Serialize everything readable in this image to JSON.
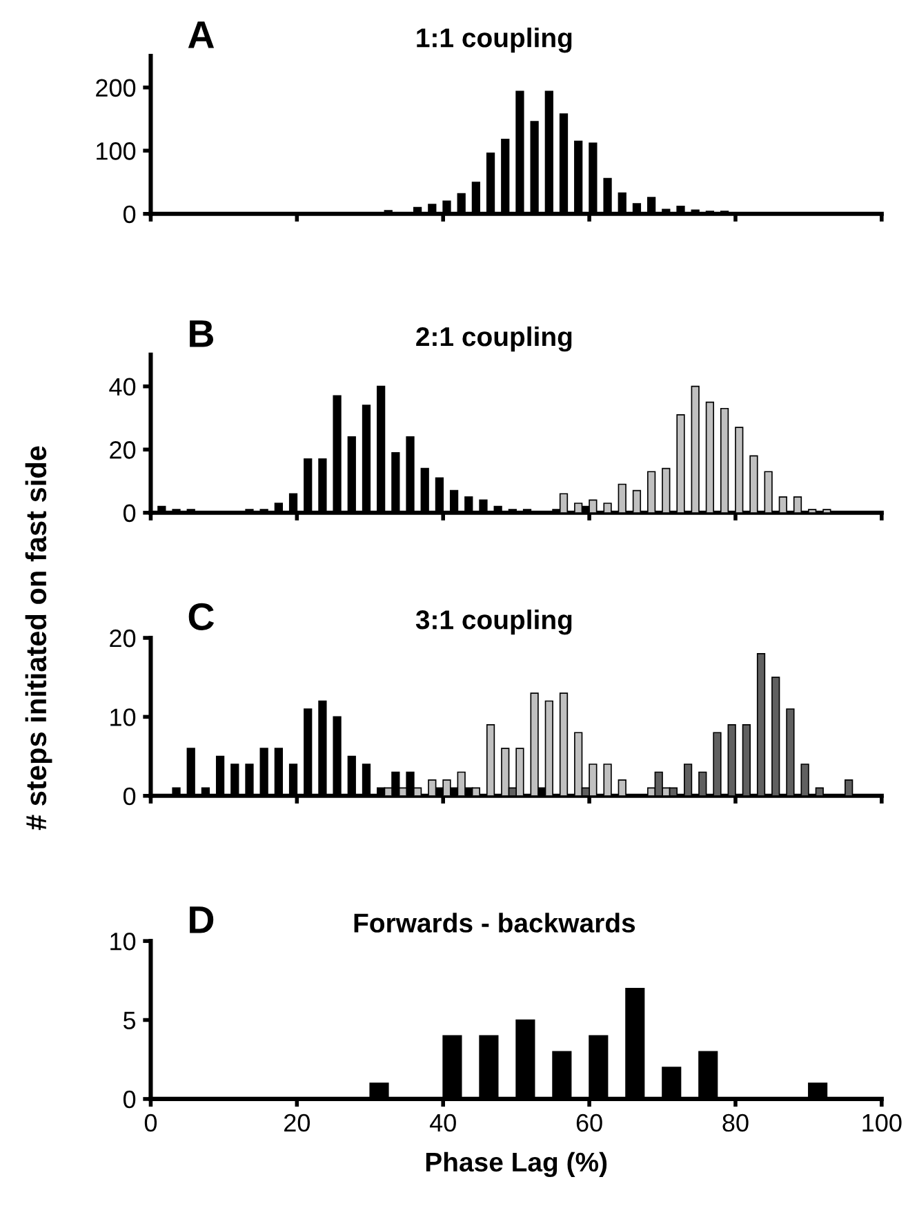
{
  "chart_data": [
    {
      "type": "bar",
      "title": "1:1 coupling",
      "annotations": [
        "A"
      ],
      "xlim": [
        0,
        100
      ],
      "xticks": [
        {
          "value": 0,
          "label": null
        },
        {
          "value": 20,
          "label": null
        },
        {
          "value": 40,
          "label": null
        },
        {
          "value": 60,
          "label": null
        },
        {
          "value": 80,
          "label": null
        },
        {
          "value": 100,
          "label": null
        }
      ],
      "ylim": [
        0,
        250
      ],
      "yticks": [
        0,
        100,
        200
      ],
      "tick_labels": "y",
      "grid": false,
      "legend": false,
      "series": [
        {
          "color": "#000000",
          "x": [
            32.5,
            34.5,
            36.5,
            38.5,
            40.5,
            42.5,
            44.5,
            46.5,
            48.5,
            50.5,
            52.5,
            54.5,
            56.5,
            58.5,
            60.5,
            62.5,
            64.5,
            66.5,
            68.5,
            70.5,
            72.5,
            74.5,
            76.5,
            78.5
          ],
          "values": [
            5,
            2,
            10,
            15,
            20,
            32,
            50,
            96,
            118,
            194,
            146,
            194,
            158,
            115,
            112,
            56,
            33,
            16,
            26,
            7,
            12,
            6,
            4,
            4
          ]
        }
      ]
    },
    {
      "type": "bar",
      "title": "2:1 coupling",
      "annotations": [
        "B"
      ],
      "xlim": [
        0,
        100
      ],
      "xticks": [
        {
          "value": 0,
          "label": null
        },
        {
          "value": 20,
          "label": null
        },
        {
          "value": 40,
          "label": null
        },
        {
          "value": 60,
          "label": null
        },
        {
          "value": 80,
          "label": null
        },
        {
          "value": 100,
          "label": null
        }
      ],
      "ylim": [
        0,
        50
      ],
      "yticks": [
        0,
        20,
        40
      ],
      "tick_labels": "y",
      "grid": false,
      "legend": false,
      "series": [
        {
          "color": "#000000",
          "x": [
            1.5,
            3.5,
            5.5,
            7.5,
            9.5,
            11.5,
            13.5,
            15.5,
            17.5,
            19.5,
            21.5,
            23.5,
            25.5,
            27.5,
            29.5,
            31.5,
            33.5,
            35.5,
            37.5,
            39.5,
            41.5,
            43.5,
            45.5,
            47.5,
            49.5,
            51.5,
            53.5,
            55.5,
            57.5,
            59.5
          ],
          "values": [
            2,
            1,
            1,
            0,
            0,
            0,
            1,
            1,
            3,
            6,
            17,
            17,
            37,
            24,
            34,
            40,
            19,
            24,
            14,
            11,
            7,
            5,
            4,
            2,
            1,
            1,
            0,
            1,
            0,
            2
          ]
        },
        {
          "color": "#c0c0c0",
          "x": [
            56.5,
            58.5,
            60.5,
            62.5,
            64.5,
            66.5,
            68.5,
            70.5,
            72.5,
            74.5,
            76.5,
            78.5,
            80.5,
            82.5,
            84.5,
            86.5,
            88.5,
            90.5,
            92.5
          ],
          "values": [
            6,
            3,
            4,
            3,
            9,
            7,
            13,
            14,
            31,
            40,
            35,
            33,
            27,
            18,
            13,
            5,
            5,
            1,
            1
          ]
        }
      ]
    },
    {
      "type": "bar",
      "title": "3:1 coupling",
      "annotations": [
        "C"
      ],
      "ylabel": "# steps initiated on fast side",
      "xlim": [
        0,
        100
      ],
      "xticks": [
        {
          "value": 0,
          "label": null
        },
        {
          "value": 20,
          "label": null
        },
        {
          "value": 40,
          "label": null
        },
        {
          "value": 60,
          "label": null
        },
        {
          "value": 80,
          "label": null
        },
        {
          "value": 100,
          "label": null
        }
      ],
      "ylim": [
        0,
        20
      ],
      "yticks": [
        0,
        10,
        20
      ],
      "tick_labels": "y",
      "grid": false,
      "legend": false,
      "series": [
        {
          "color": "#000000",
          "x": [
            3.5,
            5.5,
            7.5,
            9.5,
            11.5,
            13.5,
            15.5,
            17.5,
            19.5,
            21.5,
            23.5,
            25.5,
            27.5,
            29.5,
            31.5,
            33.5,
            35.5,
            37.5,
            39.5,
            41.5,
            43.5,
            45.5,
            47.5,
            49.5,
            51.5,
            53.5
          ],
          "values": [
            1,
            6,
            1,
            5,
            4,
            4,
            6,
            6,
            4,
            11,
            12,
            10,
            5,
            4,
            1,
            3,
            3,
            0,
            1,
            1,
            1,
            0,
            0,
            0,
            0,
            1
          ]
        },
        {
          "color": "#c0c0c0",
          "x": [
            32.5,
            34.5,
            36.5,
            38.5,
            40.5,
            42.5,
            44.5,
            46.5,
            48.5,
            50.5,
            52.5,
            54.5,
            56.5,
            58.5,
            60.5,
            62.5,
            64.5,
            66.5,
            68.5,
            70.5
          ],
          "values": [
            1,
            1,
            1,
            2,
            2,
            3,
            1,
            9,
            6,
            6,
            13,
            12,
            13,
            8,
            4,
            4,
            2,
            0,
            1,
            1
          ]
        },
        {
          "color": "#606060",
          "x": [
            49.5,
            51.5,
            53.5,
            55.5,
            57.5,
            59.5,
            61.5,
            63.5,
            65.5,
            67.5,
            69.5,
            71.5,
            73.5,
            75.5,
            77.5,
            79.5,
            81.5,
            83.5,
            85.5,
            87.5,
            89.5,
            91.5,
            93.5,
            95.5
          ],
          "values": [
            1,
            0,
            0,
            0,
            0,
            1,
            0,
            0,
            0,
            0,
            3,
            1,
            4,
            3,
            8,
            9,
            9,
            18,
            15,
            11,
            4,
            1,
            0,
            2
          ]
        }
      ]
    },
    {
      "type": "bar",
      "title": "Forwards - backwards",
      "annotations": [
        "D"
      ],
      "xlabel": "Phase Lag (%)",
      "xlim": [
        0,
        100
      ],
      "xticks": [
        0,
        20,
        40,
        60,
        80,
        100
      ],
      "ylim": [
        0,
        10
      ],
      "yticks": [
        0,
        5,
        10
      ],
      "grid": false,
      "legend": false,
      "series": [
        {
          "color": "#000000",
          "x": [
            31.25,
            36.25,
            41.25,
            46.25,
            51.25,
            56.25,
            61.25,
            66.25,
            71.25,
            76.25,
            81.25,
            86.25,
            91.25
          ],
          "values": [
            1,
            0,
            4,
            4,
            5,
            3,
            4,
            7,
            2,
            3,
            0,
            0,
            1
          ]
        }
      ]
    }
  ]
}
